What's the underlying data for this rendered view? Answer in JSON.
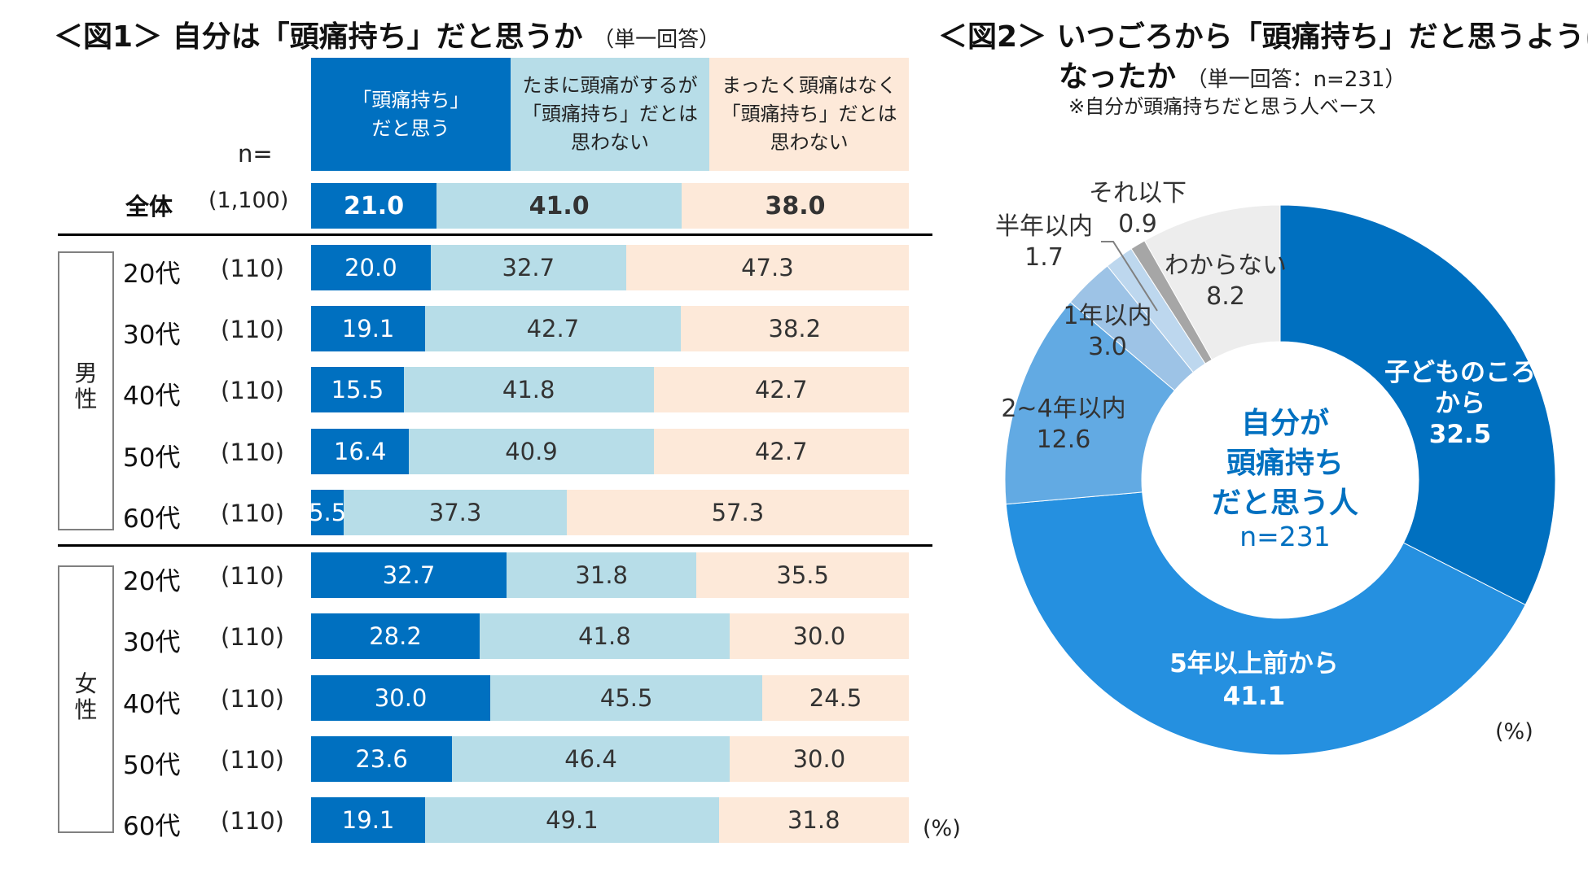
{
  "fig1": {
    "title": "＜図1＞ 自分は「頭痛持ち」だと思うか",
    "title_note": "（単一回答）",
    "n_header": "n=",
    "unit": "(%)",
    "legend": [
      {
        "label": "「頭痛持ち」\nだと思う",
        "color": "#0070C0",
        "text_color": "#ffffff"
      },
      {
        "label": "たまに頭痛がするが\n「頭痛持ち」だとは\n思わない",
        "color": "#B7DDE8",
        "text_color": "#222222"
      },
      {
        "label": "まったく頭痛はなく\n「頭痛持ち」だとは\n思わない",
        "color": "#FDE9D9",
        "text_color": "#222222"
      }
    ],
    "groups": [
      {
        "name": "",
        "label_vertical": ""
      },
      {
        "name": "男性",
        "label_vertical": "男\n性"
      },
      {
        "name": "女性",
        "label_vertical": "女\n性"
      }
    ]
  },
  "fig2": {
    "title_line1": "＜図2＞ いつごろから「頭痛持ち」だと思うように",
    "title_line2": "なったか",
    "title_note": "（単一回答：n=231）",
    "base_note": "※自分が頭痛持ちだと思う人ベース",
    "center_label": [
      "自分が",
      "頭痛持ち",
      "だと思う人"
    ],
    "center_n": "n=231",
    "unit": "(%)"
  },
  "chart_data": [
    {
      "type": "bar",
      "orientation": "horizontal-stacked-100",
      "title": "＜図1＞ 自分は「頭痛持ち」だと思うか（単一回答）",
      "xlabel": "",
      "ylabel": "",
      "unit": "%",
      "xlim": [
        0,
        100
      ],
      "series_names": [
        "「頭痛持ち」だと思う",
        "たまに頭痛がするが「頭痛持ち」だとは思わない",
        "まったく頭痛はなく「頭痛持ち」だとは思わない"
      ],
      "rows": [
        {
          "group": "",
          "label": "全体",
          "n": "(1,100)",
          "values": [
            21.0,
            41.0,
            38.0
          ],
          "labels": [
            "21.0",
            "41.0",
            "38.0"
          ],
          "bold": true
        },
        {
          "group": "男性",
          "label": "20代",
          "n": "(110)",
          "values": [
            20.0,
            32.7,
            47.3
          ],
          "labels": [
            "20.0",
            "32.7",
            "47.3"
          ]
        },
        {
          "group": "男性",
          "label": "30代",
          "n": "(110)",
          "values": [
            19.1,
            42.7,
            38.2
          ],
          "labels": [
            "19.1",
            "42.7",
            "38.2"
          ]
        },
        {
          "group": "男性",
          "label": "40代",
          "n": "(110)",
          "values": [
            15.5,
            41.8,
            42.7
          ],
          "labels": [
            "15.5",
            "41.8",
            "42.7"
          ]
        },
        {
          "group": "男性",
          "label": "50代",
          "n": "(110)",
          "values": [
            16.4,
            40.9,
            42.7
          ],
          "labels": [
            "16.4",
            "40.9",
            "42.7"
          ]
        },
        {
          "group": "男性",
          "label": "60代",
          "n": "(110)",
          "values": [
            5.5,
            37.3,
            57.3
          ],
          "labels": [
            "5.5",
            "37.3",
            "57.3"
          ]
        },
        {
          "group": "女性",
          "label": "20代",
          "n": "(110)",
          "values": [
            32.7,
            31.8,
            35.5
          ],
          "labels": [
            "32.7",
            "31.8",
            "35.5"
          ]
        },
        {
          "group": "女性",
          "label": "30代",
          "n": "(110)",
          "values": [
            28.2,
            41.8,
            30.0
          ],
          "labels": [
            "28.2",
            "41.8",
            "30.0"
          ]
        },
        {
          "group": "女性",
          "label": "40代",
          "n": "(110)",
          "values": [
            30.0,
            45.5,
            24.5
          ],
          "labels": [
            "30.0",
            "45.5",
            "24.5"
          ]
        },
        {
          "group": "女性",
          "label": "50代",
          "n": "(110)",
          "values": [
            23.6,
            46.4,
            30.0
          ],
          "labels": [
            "23.6",
            "46.4",
            "30.0"
          ]
        },
        {
          "group": "女性",
          "label": "60代",
          "n": "(110)",
          "values": [
            19.1,
            49.1,
            31.8
          ],
          "labels": [
            "19.1",
            "49.1",
            "31.8"
          ]
        }
      ],
      "colors": [
        "#0070C0",
        "#B7DDE8",
        "#FDE9D9"
      ],
      "legend": "top (column header)",
      "grid": false
    },
    {
      "type": "pie",
      "variant": "donut",
      "title": "＜図2＞ いつごろから「頭痛持ち」だと思うようになったか（単一回答：n=231）",
      "subtitle": "※自分が頭痛持ちだと思う人ベース",
      "unit": "%",
      "start": "12 o'clock, clockwise",
      "slices": [
        {
          "label": "子どものころから",
          "display": [
            "子どものころ",
            "から"
          ],
          "value": 32.5,
          "color": "#0070C0",
          "text_color": "#ffffff",
          "bold": true
        },
        {
          "label": "5年以上前から",
          "display": [
            "5年以上前から"
          ],
          "value": 41.1,
          "color": "#2590E0",
          "text_color": "#ffffff",
          "bold": true
        },
        {
          "label": "2~4年以内",
          "display": [
            "2~4年以内"
          ],
          "value": 12.6,
          "color": "#62AAE3",
          "text_color": "#333333",
          "bold": false
        },
        {
          "label": "1年以内",
          "display": [
            "1年以内"
          ],
          "value": 3.0,
          "color": "#9DC3E6",
          "text_color": "#333333",
          "bold": false
        },
        {
          "label": "半年以内",
          "display": [
            "半年以内"
          ],
          "value": 1.7,
          "color": "#BDD7EE",
          "text_color": "#333333",
          "bold": false
        },
        {
          "label": "それ以下",
          "display": [
            "それ以下"
          ],
          "value": 0.9,
          "color": "#A6A6A6",
          "text_color": "#333333",
          "bold": false
        },
        {
          "label": "わからない",
          "display": [
            "わからない"
          ],
          "value": 8.2,
          "color": "#EDEDED",
          "text_color": "#333333",
          "bold": false
        }
      ]
    }
  ]
}
